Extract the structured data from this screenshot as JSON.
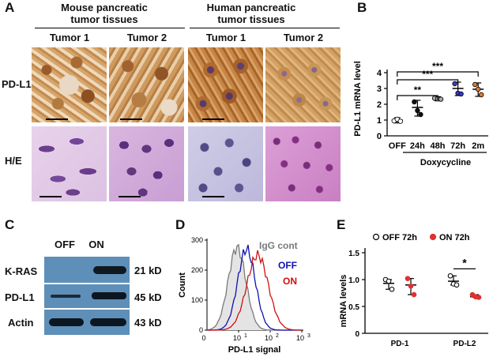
{
  "panel_a": {
    "letter": "A",
    "group_headers": [
      "Mouse pancreatic tumor tissues",
      "Human pancreatic tumor tissues"
    ],
    "columns": [
      "Tumor 1",
      "Tumor 2",
      "Tumor 1",
      "Tumor 2"
    ],
    "rows": [
      "PD-L1",
      "H/E"
    ]
  },
  "panel_b": {
    "letter": "B",
    "chart_data": {
      "type": "scatter",
      "ylabel": "PD-L1 mRNA level",
      "xlabel": "Doxycycline",
      "categories": [
        "OFF",
        "24h",
        "48h",
        "72h",
        "2m"
      ],
      "ylim": [
        0,
        4
      ],
      "yticks": [
        0,
        1,
        2,
        3,
        4
      ],
      "means": [
        1.0,
        1.8,
        2.35,
        3.0,
        2.95
      ],
      "points": [
        [
          0.95,
          1.05,
          0.92
        ],
        [
          2.15,
          1.6,
          1.35
        ],
        [
          2.38,
          2.34,
          2.32
        ],
        [
          3.3,
          2.7,
          2.65
        ],
        [
          3.25,
          2.95,
          2.6
        ]
      ],
      "point_colors": [
        "#ffffff",
        "#111111",
        "#a9a9a9",
        "#3a3ac8",
        "#e07b2e"
      ],
      "significance": [
        {
          "from": 0,
          "to": 2,
          "label": "**"
        },
        {
          "from": 0,
          "to": 3,
          "label": "***"
        },
        {
          "from": 0,
          "to": 4,
          "label": "***"
        }
      ]
    }
  },
  "panel_c": {
    "letter": "C",
    "conditions": [
      "OFF",
      "ON"
    ],
    "bands": [
      {
        "name": "K-RAS",
        "size": "21 kD"
      },
      {
        "name": "PD-L1",
        "size": "45 kD"
      },
      {
        "name": "Actin",
        "size": "43 kD"
      }
    ]
  },
  "panel_d": {
    "letter": "D",
    "chart_data": {
      "type": "line",
      "xlabel": "PD-L1 signal",
      "ylabel": "Count",
      "ylim": [
        0,
        300
      ],
      "yticks": [
        0,
        100,
        200,
        300
      ],
      "xticks": [
        "0",
        "10",
        "1",
        "10",
        "2",
        "10",
        "3"
      ],
      "xtick_base": "10",
      "xtick_exponents": [
        "0",
        "1",
        "2",
        "3"
      ],
      "series": [
        {
          "name": "IgG cont",
          "color": "#7a7a7a",
          "peak_x_log": 0.95,
          "peak_y": 275
        },
        {
          "name": "OFF",
          "color": "#1010b0",
          "peak_x_log": 1.25,
          "peak_y": 270
        },
        {
          "name": "ON",
          "color": "#d01010",
          "peak_x_log": 1.6,
          "peak_y": 250
        }
      ]
    }
  },
  "panel_e": {
    "letter": "E",
    "chart_data": {
      "type": "scatter",
      "ylabel": "mRNA levels",
      "categories": [
        "PD-1",
        "PD-L2"
      ],
      "ylim": [
        0,
        1.5
      ],
      "yticks": [
        "0",
        "0.5",
        "1.0",
        "1.5"
      ],
      "series": [
        {
          "name": "OFF 72h",
          "color": "#ffffff",
          "means": [
            0.93,
            0.97
          ],
          "points": [
            [
              1.0,
              0.97,
              0.82
            ],
            [
              1.07,
              0.92,
              0.9
            ]
          ]
        },
        {
          "name": "ON 72h",
          "color": "#e03030",
          "means": [
            0.9,
            0.68
          ],
          "points": [
            [
              1.02,
              0.88,
              0.72
            ],
            [
              0.72,
              0.68,
              0.67
            ]
          ]
        }
      ],
      "significance": [
        {
          "category": 1,
          "label": "*"
        }
      ]
    }
  }
}
